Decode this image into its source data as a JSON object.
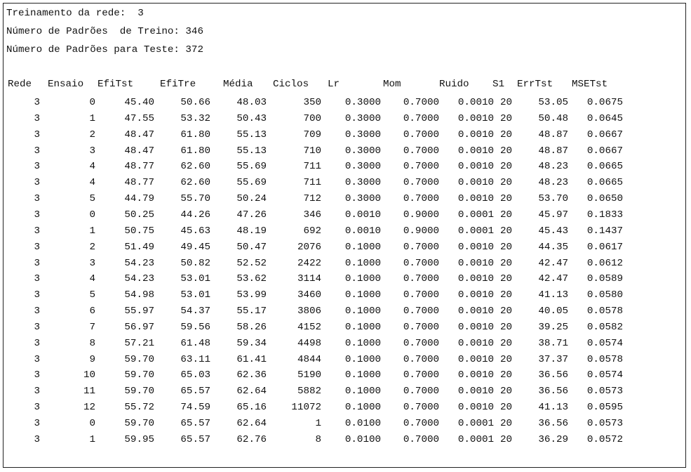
{
  "header": {
    "line1": "Treinamento da rede:  3",
    "line2": "Número de Padrões  de Treino: 346",
    "line3": "Número de Padrões para Teste: 372"
  },
  "table": {
    "columns": [
      "Rede",
      "Ensaio",
      "EfiTst",
      "EfiTre",
      "Média",
      "Ciclos",
      "Lr",
      "Mom",
      "Ruido",
      "S1",
      "ErrTst",
      "MSETst"
    ],
    "rows": [
      [
        "3",
        "0",
        "45.40",
        "50.66",
        "48.03",
        "350",
        "0.3000",
        "0.7000",
        "0.0010",
        "20",
        "53.05",
        "0.0675"
      ],
      [
        "3",
        "1",
        "47.55",
        "53.32",
        "50.43",
        "700",
        "0.3000",
        "0.7000",
        "0.0010",
        "20",
        "50.48",
        "0.0645"
      ],
      [
        "3",
        "2",
        "48.47",
        "61.80",
        "55.13",
        "709",
        "0.3000",
        "0.7000",
        "0.0010",
        "20",
        "48.87",
        "0.0667"
      ],
      [
        "3",
        "3",
        "48.47",
        "61.80",
        "55.13",
        "710",
        "0.3000",
        "0.7000",
        "0.0010",
        "20",
        "48.87",
        "0.0667"
      ],
      [
        "3",
        "4",
        "48.77",
        "62.60",
        "55.69",
        "711",
        "0.3000",
        "0.7000",
        "0.0010",
        "20",
        "48.23",
        "0.0665"
      ],
      [
        "3",
        "4",
        "48.77",
        "62.60",
        "55.69",
        "711",
        "0.3000",
        "0.7000",
        "0.0010",
        "20",
        "48.23",
        "0.0665"
      ],
      [
        "3",
        "5",
        "44.79",
        "55.70",
        "50.24",
        "712",
        "0.3000",
        "0.7000",
        "0.0010",
        "20",
        "53.70",
        "0.0650"
      ],
      [
        "3",
        "0",
        "50.25",
        "44.26",
        "47.26",
        "346",
        "0.0010",
        "0.9000",
        "0.0001",
        "20",
        "45.97",
        "0.1833"
      ],
      [
        "3",
        "1",
        "50.75",
        "45.63",
        "48.19",
        "692",
        "0.0010",
        "0.9000",
        "0.0001",
        "20",
        "45.43",
        "0.1437"
      ],
      [
        "3",
        "2",
        "51.49",
        "49.45",
        "50.47",
        "2076",
        "0.1000",
        "0.7000",
        "0.0010",
        "20",
        "44.35",
        "0.0617"
      ],
      [
        "3",
        "3",
        "54.23",
        "50.82",
        "52.52",
        "2422",
        "0.1000",
        "0.7000",
        "0.0010",
        "20",
        "42.47",
        "0.0612"
      ],
      [
        "3",
        "4",
        "54.23",
        "53.01",
        "53.62",
        "3114",
        "0.1000",
        "0.7000",
        "0.0010",
        "20",
        "42.47",
        "0.0589"
      ],
      [
        "3",
        "5",
        "54.98",
        "53.01",
        "53.99",
        "3460",
        "0.1000",
        "0.7000",
        "0.0010",
        "20",
        "41.13",
        "0.0580"
      ],
      [
        "3",
        "6",
        "55.97",
        "54.37",
        "55.17",
        "3806",
        "0.1000",
        "0.7000",
        "0.0010",
        "20",
        "40.05",
        "0.0578"
      ],
      [
        "3",
        "7",
        "56.97",
        "59.56",
        "58.26",
        "4152",
        "0.1000",
        "0.7000",
        "0.0010",
        "20",
        "39.25",
        "0.0582"
      ],
      [
        "3",
        "8",
        "57.21",
        "61.48",
        "59.34",
        "4498",
        "0.1000",
        "0.7000",
        "0.0010",
        "20",
        "38.71",
        "0.0574"
      ],
      [
        "3",
        "9",
        "59.70",
        "63.11",
        "61.41",
        "4844",
        "0.1000",
        "0.7000",
        "0.0010",
        "20",
        "37.37",
        "0.0578"
      ],
      [
        "3",
        "10",
        "59.70",
        "65.03",
        "62.36",
        "5190",
        "0.1000",
        "0.7000",
        "0.0010",
        "20",
        "36.56",
        "0.0574"
      ],
      [
        "3",
        "11",
        "59.70",
        "65.57",
        "62.64",
        "5882",
        "0.1000",
        "0.7000",
        "0.0010",
        "20",
        "36.56",
        "0.0573"
      ],
      [
        "3",
        "12",
        "55.72",
        "74.59",
        "65.16",
        "11072",
        "0.1000",
        "0.7000",
        "0.0010",
        "20",
        "41.13",
        "0.0595"
      ],
      [
        "3",
        "0",
        "59.70",
        "65.57",
        "62.64",
        "1",
        "0.0100",
        "0.7000",
        "0.0001",
        "20",
        "36.56",
        "0.0573"
      ],
      [
        "3",
        "1",
        "59.95",
        "65.57",
        "62.76",
        "8",
        "0.0100",
        "0.7000",
        "0.0001",
        "20",
        "36.29",
        "0.0572"
      ]
    ]
  }
}
